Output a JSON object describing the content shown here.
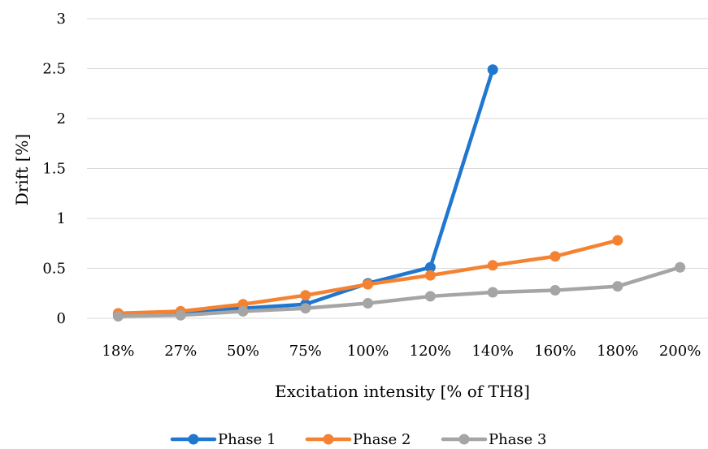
{
  "chart_data": {
    "type": "line",
    "categories": [
      "18%",
      "27%",
      "50%",
      "75%",
      "100%",
      "120%",
      "140%",
      "160%",
      "180%",
      "200%"
    ],
    "series": [
      {
        "name": "Phase 1",
        "color": "#1f77d0",
        "values": [
          0.04,
          0.06,
          0.1,
          0.14,
          0.35,
          0.51,
          2.49,
          null,
          null,
          null
        ]
      },
      {
        "name": "Phase 2",
        "color": "#f58231",
        "values": [
          0.05,
          0.07,
          0.14,
          0.23,
          0.34,
          0.43,
          0.53,
          0.62,
          0.78,
          null
        ]
      },
      {
        "name": "Phase 3",
        "color": "#a5a5a5",
        "values": [
          0.02,
          0.03,
          0.07,
          0.1,
          0.15,
          0.22,
          0.26,
          0.28,
          0.32,
          0.51
        ]
      }
    ],
    "xlabel": "Excitation intensity [% of TH8]",
    "ylabel": "Drift [%]",
    "ylim": [
      0,
      3
    ],
    "yticks": [
      "0",
      "0.5",
      "1",
      "1.5",
      "2",
      "2.5",
      "3"
    ],
    "grid": true,
    "legend": "bottom"
  }
}
